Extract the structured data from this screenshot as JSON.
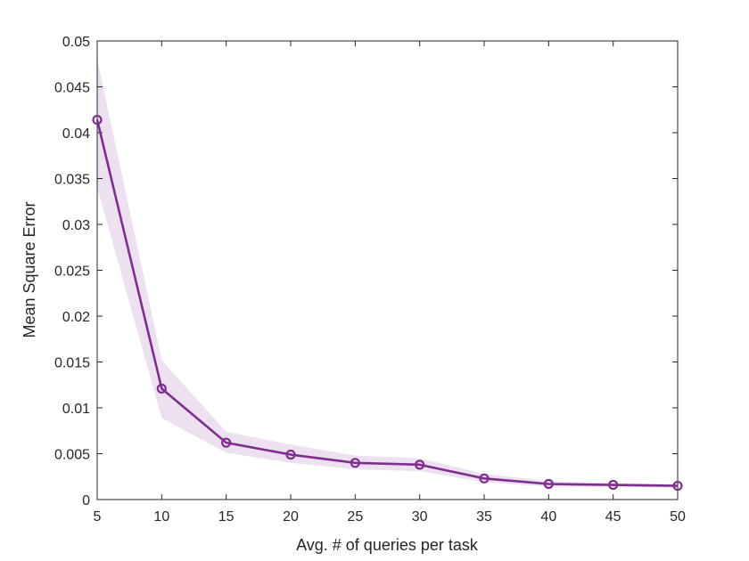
{
  "chart_data": {
    "type": "line",
    "title": "",
    "xlabel": "Avg. # of queries per task",
    "ylabel": "Mean Square Error",
    "xlim": [
      5,
      50
    ],
    "ylim": [
      0,
      0.05
    ],
    "x_ticks": [
      "5",
      "10",
      "15",
      "20",
      "25",
      "30",
      "35",
      "40",
      "45",
      "50"
    ],
    "y_ticks": [
      "0",
      "0.005",
      "0.01",
      "0.015",
      "0.02",
      "0.025",
      "0.03",
      "0.035",
      "0.04",
      "0.045",
      "0.05"
    ],
    "grid": false,
    "legend": "none",
    "colors": {
      "line": "#7E2F8E",
      "band": "#EDE0F0",
      "axis": "#262626"
    },
    "series": [
      {
        "x": [
          5,
          10,
          15,
          20,
          25,
          30,
          35,
          40,
          45,
          50
        ],
        "y": [
          0.0414,
          0.0121,
          0.0062,
          0.0049,
          0.004,
          0.0038,
          0.0023,
          0.0017,
          0.0016,
          0.0015
        ],
        "upper": [
          0.048,
          0.0152,
          0.0074,
          0.006,
          0.0048,
          0.0045,
          0.0028,
          0.002,
          0.0018,
          0.0017
        ],
        "lower": [
          0.034,
          0.0089,
          0.0051,
          0.004,
          0.0033,
          0.0031,
          0.0019,
          0.0014,
          0.0014,
          0.0013
        ],
        "marker": "circle"
      }
    ]
  }
}
